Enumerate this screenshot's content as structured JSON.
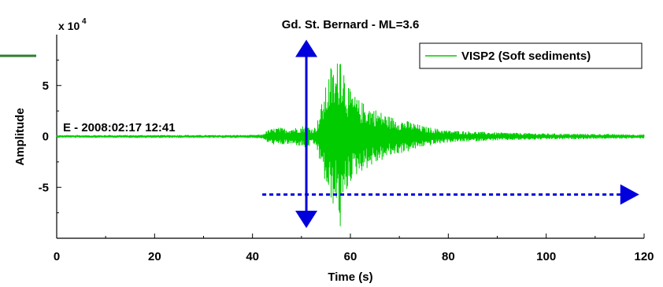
{
  "chart_data": {
    "type": "line",
    "title": "Gd. St. Bernard - ML=3.6",
    "xlabel": "Time (s)",
    "ylabel": "Amplitude",
    "y_multiplier": "x 10",
    "y_multiplier_exp": "4",
    "xlim": [
      0,
      120
    ],
    "ylim": [
      -10,
      10
    ],
    "x_ticks": [
      0,
      20,
      40,
      60,
      80,
      100,
      120
    ],
    "y_ticks": [
      -5,
      0,
      5
    ],
    "grid": false,
    "legend": {
      "placement": "top-right",
      "entries": [
        "VISP2 (Soft sediments)"
      ]
    },
    "annotation": "E - 2008:02:17 12:41",
    "series": [
      {
        "name": "VISP2 (Soft sediments)",
        "color": "#00cc00",
        "envelope": [
          [
            0,
            0.12
          ],
          [
            40,
            0.15
          ],
          [
            42,
            0.2
          ],
          [
            43,
            0.6
          ],
          [
            45,
            0.9
          ],
          [
            47,
            0.8
          ],
          [
            49,
            0.9
          ],
          [
            50,
            1.0
          ],
          [
            51,
            1.2
          ],
          [
            52,
            0.8
          ],
          [
            53,
            1.0
          ],
          [
            54,
            3.0
          ],
          [
            55,
            5.0
          ],
          [
            56,
            7.0
          ],
          [
            57,
            6.5
          ],
          [
            58,
            9.5
          ],
          [
            59,
            6.0
          ],
          [
            60,
            4.5
          ],
          [
            62,
            3.5
          ],
          [
            64,
            3.0
          ],
          [
            66,
            2.5
          ],
          [
            68,
            2.0
          ],
          [
            70,
            1.7
          ],
          [
            72,
            1.5
          ],
          [
            75,
            1.0
          ],
          [
            80,
            0.6
          ],
          [
            90,
            0.4
          ],
          [
            100,
            0.3
          ],
          [
            110,
            0.25
          ],
          [
            120,
            0.2
          ]
        ]
      }
    ]
  },
  "arrows": {
    "vertical": {
      "x": 51,
      "y_from": -9,
      "y_to": 9.5,
      "color": "#0000dd"
    },
    "horizontal": {
      "x_from": 42,
      "x_to": 119,
      "y": -5.7,
      "color": "#0000dd"
    }
  },
  "side_mark_color": "#2e7d32"
}
